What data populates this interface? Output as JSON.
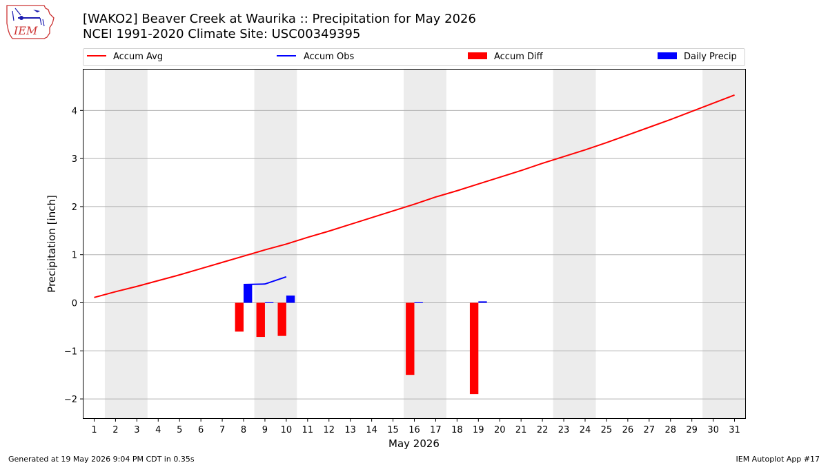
{
  "header": {
    "title_line1": "[WAKO2] Beaver Creek at Waurika :: Precipitation for May 2026",
    "title_line2": "NCEI 1991-2020 Climate Site: USC00349395"
  },
  "logo": {
    "text": "IEM",
    "icon": "iem-state-logo-icon"
  },
  "footer": {
    "left": "Generated at 19 May 2026 9:04 PM CDT in 0.35s",
    "right": "IEM Autoplot App #17"
  },
  "colors": {
    "avg": "#ff0000",
    "obs": "#0000ff",
    "diff": "#ff0000",
    "daily": "#0000ff",
    "weekend_band": "#ececec",
    "grid": "#b0b0b0"
  },
  "chart_data": {
    "type": "bar",
    "xlabel": "May 2026",
    "ylabel": "Precipitation [inch]",
    "xlim": [
      0.5,
      31.5
    ],
    "ylim": [
      -2.4,
      4.85
    ],
    "grid": true,
    "legend_placement": "top",
    "legend": [
      "Accum Avg",
      "Accum Obs",
      "Accum Diff",
      "Daily Precip"
    ],
    "x_ticks": [
      "1",
      "2",
      "3",
      "4",
      "5",
      "6",
      "7",
      "8",
      "9",
      "10",
      "11",
      "12",
      "13",
      "14",
      "15",
      "16",
      "17",
      "18",
      "19",
      "20",
      "21",
      "22",
      "23",
      "24",
      "25",
      "26",
      "27",
      "28",
      "29",
      "30",
      "31"
    ],
    "y_ticks": [
      {
        "value": -2,
        "label": "−2"
      },
      {
        "value": -1,
        "label": "−1"
      },
      {
        "value": 0,
        "label": "0"
      },
      {
        "value": 1,
        "label": "1"
      },
      {
        "value": 2,
        "label": "2"
      },
      {
        "value": 3,
        "label": "3"
      },
      {
        "value": 4,
        "label": "4"
      }
    ],
    "weekend_bands": [
      [
        1.5,
        3.5
      ],
      [
        8.5,
        10.5
      ],
      [
        15.5,
        17.5
      ],
      [
        22.5,
        24.5
      ],
      [
        29.5,
        31.5
      ]
    ],
    "series": [
      {
        "name": "Accum Avg",
        "kind": "line",
        "days": [
          1,
          2,
          3,
          4,
          5,
          6,
          7,
          8,
          9,
          10,
          11,
          12,
          13,
          14,
          15,
          16,
          17,
          18,
          19,
          20,
          21,
          22,
          23,
          24,
          25,
          26,
          27,
          28,
          29,
          30,
          31
        ],
        "values": [
          0.11,
          0.23,
          0.34,
          0.46,
          0.58,
          0.71,
          0.84,
          0.97,
          1.1,
          1.22,
          1.36,
          1.49,
          1.63,
          1.77,
          1.91,
          2.05,
          2.2,
          2.33,
          2.47,
          2.61,
          2.75,
          2.9,
          3.04,
          3.18,
          3.33,
          3.49,
          3.65,
          3.81,
          3.98,
          4.15,
          4.32
        ]
      },
      {
        "name": "Accum Obs",
        "kind": "line",
        "days": [
          8,
          9,
          10
        ],
        "values": [
          0.38,
          0.39,
          0.54
        ]
      },
      {
        "name": "Accum Diff",
        "kind": "bar",
        "days": [
          8,
          9,
          10,
          16,
          19
        ],
        "values": [
          -0.6,
          -0.71,
          -0.69,
          -1.5,
          -1.9
        ]
      },
      {
        "name": "Daily Precip",
        "kind": "bar",
        "days": [
          8,
          9,
          10,
          16,
          19
        ],
        "values": [
          0.38,
          0.01,
          0.15,
          0.01,
          0.03
        ]
      }
    ]
  }
}
